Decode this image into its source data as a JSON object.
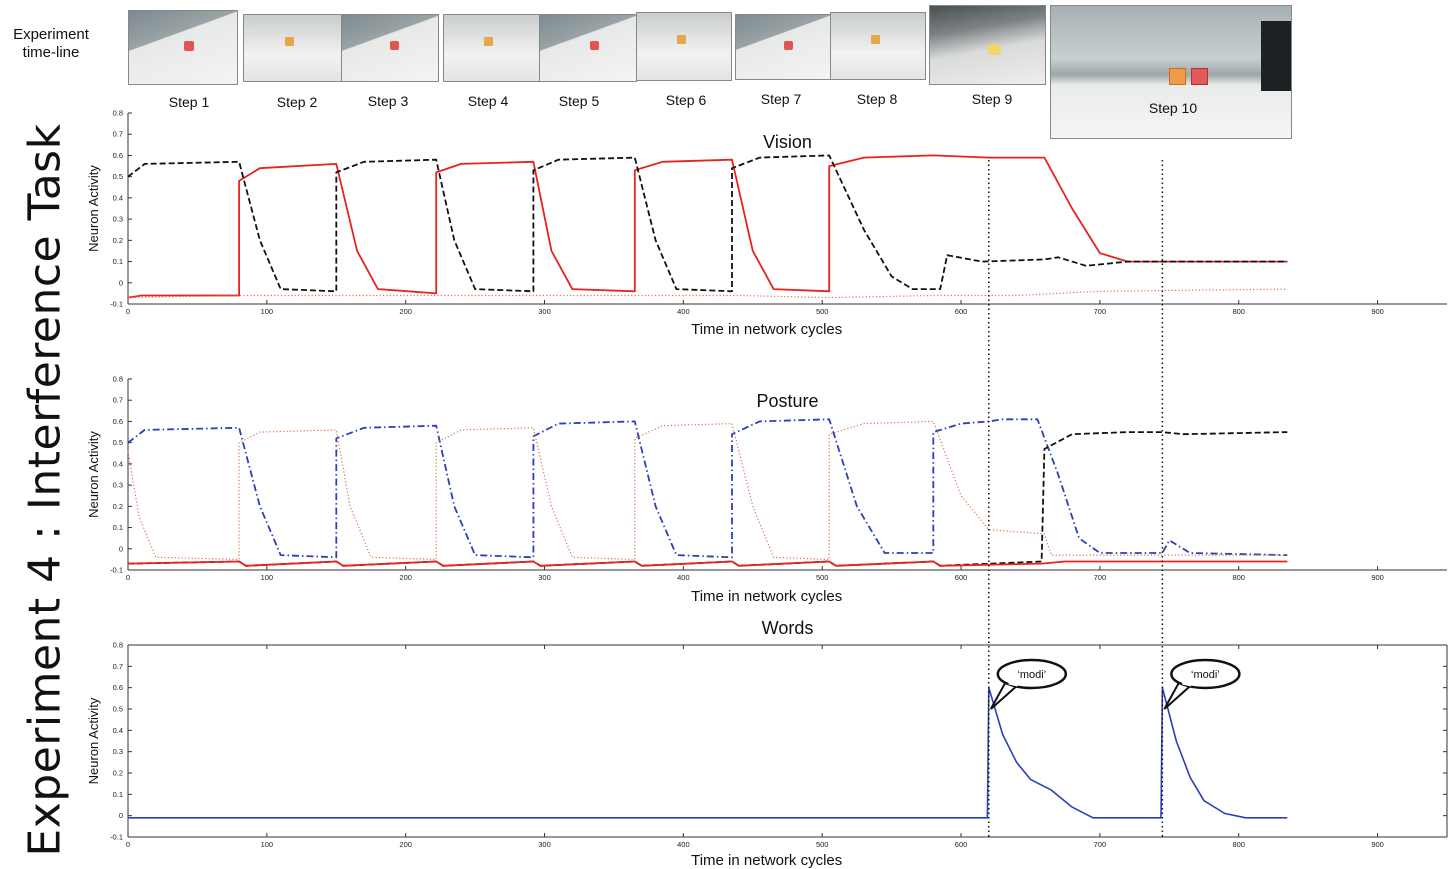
{
  "figure": {
    "side_title": "Experiment 4 : Interference Task",
    "timeline_label_line1": "Experiment",
    "timeline_label_line2": "time-line",
    "steps": [
      "Step 1",
      "Step 2",
      "Step 3",
      "Step 4",
      "Step 5",
      "Step 6",
      "Step 7",
      "Step 8",
      "Step 9",
      "Step 10"
    ],
    "markers_x": [
      620,
      745
    ],
    "speech_bubbles": [
      "‘modi’",
      "‘modi’"
    ]
  },
  "colors": {
    "red": "#e8221f",
    "black": "#111111",
    "blue": "#2d3fb8",
    "orange_dot": "#e0714a"
  },
  "chart_data": [
    {
      "type": "line",
      "title": "Vision",
      "xlabel": "Time in network cycles",
      "ylabel": "Neuron Activity",
      "xlim": [
        0,
        950
      ],
      "ylim": [
        -0.1,
        0.8
      ],
      "xticks": [
        0,
        100,
        200,
        300,
        400,
        500,
        600,
        700,
        800,
        900
      ],
      "yticks": [
        -0.1,
        0,
        0.1,
        0.2,
        0.3,
        0.4,
        0.5,
        0.6,
        0.7,
        0.8
      ],
      "series": [
        {
          "style": "red-solid",
          "points": [
            [
              0,
              -0.07
            ],
            [
              10,
              -0.06
            ],
            [
              80,
              -0.06
            ],
            [
              80,
              0.48
            ],
            [
              95,
              0.54
            ],
            [
              150,
              0.56
            ],
            [
              165,
              0.15
            ],
            [
              180,
              -0.03
            ],
            [
              222,
              -0.05
            ],
            [
              222,
              0.52
            ],
            [
              240,
              0.56
            ],
            [
              292,
              0.57
            ],
            [
              305,
              0.15
            ],
            [
              320,
              -0.03
            ],
            [
              365,
              -0.04
            ],
            [
              365,
              0.53
            ],
            [
              385,
              0.57
            ],
            [
              435,
              0.58
            ],
            [
              450,
              0.15
            ],
            [
              465,
              -0.03
            ],
            [
              505,
              -0.04
            ],
            [
              505,
              0.55
            ],
            [
              530,
              0.59
            ],
            [
              580,
              0.6
            ],
            [
              620,
              0.59
            ],
            [
              660,
              0.59
            ],
            [
              680,
              0.35
            ],
            [
              700,
              0.14
            ],
            [
              720,
              0.1
            ],
            [
              835,
              0.1
            ]
          ]
        },
        {
          "style": "black-dashed",
          "points": [
            [
              0,
              0.5
            ],
            [
              12,
              0.56
            ],
            [
              80,
              0.57
            ],
            [
              95,
              0.2
            ],
            [
              110,
              -0.03
            ],
            [
              150,
              -0.04
            ],
            [
              150,
              0.52
            ],
            [
              170,
              0.57
            ],
            [
              222,
              0.58
            ],
            [
              235,
              0.2
            ],
            [
              250,
              -0.03
            ],
            [
              292,
              -0.04
            ],
            [
              292,
              0.53
            ],
            [
              310,
              0.58
            ],
            [
              365,
              0.59
            ],
            [
              380,
              0.2
            ],
            [
              395,
              -0.03
            ],
            [
              435,
              -0.04
            ],
            [
              435,
              0.54
            ],
            [
              455,
              0.59
            ],
            [
              505,
              0.6
            ],
            [
              530,
              0.25
            ],
            [
              550,
              0.03
            ],
            [
              565,
              -0.03
            ],
            [
              585,
              -0.03
            ],
            [
              590,
              0.13
            ],
            [
              615,
              0.1
            ],
            [
              660,
              0.11
            ],
            [
              670,
              0.12
            ],
            [
              690,
              0.08
            ],
            [
              720,
              0.1
            ],
            [
              835,
              0.1
            ]
          ]
        },
        {
          "style": "orange-dotted",
          "points": [
            [
              0,
              -0.07
            ],
            [
              80,
              -0.06
            ],
            [
              90,
              -0.06
            ],
            [
              150,
              -0.06
            ],
            [
              225,
              -0.06
            ],
            [
              300,
              -0.06
            ],
            [
              365,
              -0.06
            ],
            [
              440,
              -0.06
            ],
            [
              505,
              -0.07
            ],
            [
              580,
              -0.06
            ],
            [
              640,
              -0.06
            ],
            [
              670,
              -0.05
            ],
            [
              700,
              -0.04
            ],
            [
              835,
              -0.03
            ]
          ]
        }
      ]
    },
    {
      "type": "line",
      "title": "Posture",
      "xlabel": "Time in network cycles",
      "ylabel": "Neuron Activity",
      "xlim": [
        0,
        950
      ],
      "ylim": [
        -0.1,
        0.8
      ],
      "xticks": [
        0,
        100,
        200,
        300,
        400,
        500,
        600,
        700,
        800,
        900
      ],
      "yticks": [
        -0.1,
        0,
        0.1,
        0.2,
        0.3,
        0.4,
        0.5,
        0.6,
        0.7,
        0.8
      ],
      "series": [
        {
          "style": "blue-dashdot",
          "points": [
            [
              0,
              0.5
            ],
            [
              12,
              0.56
            ],
            [
              80,
              0.57
            ],
            [
              95,
              0.2
            ],
            [
              110,
              -0.03
            ],
            [
              150,
              -0.04
            ],
            [
              150,
              0.52
            ],
            [
              170,
              0.57
            ],
            [
              222,
              0.58
            ],
            [
              235,
              0.2
            ],
            [
              250,
              -0.03
            ],
            [
              292,
              -0.04
            ],
            [
              292,
              0.53
            ],
            [
              310,
              0.59
            ],
            [
              365,
              0.6
            ],
            [
              380,
              0.2
            ],
            [
              395,
              -0.03
            ],
            [
              435,
              -0.04
            ],
            [
              435,
              0.54
            ],
            [
              455,
              0.6
            ],
            [
              505,
              0.61
            ],
            [
              525,
              0.2
            ],
            [
              545,
              -0.02
            ],
            [
              580,
              -0.02
            ],
            [
              580,
              0.55
            ],
            [
              600,
              0.59
            ],
            [
              620,
              0.6
            ],
            [
              630,
              0.61
            ],
            [
              655,
              0.61
            ],
            [
              670,
              0.35
            ],
            [
              685,
              0.05
            ],
            [
              700,
              -0.02
            ],
            [
              745,
              -0.02
            ],
            [
              750,
              0.04
            ],
            [
              765,
              -0.02
            ],
            [
              835,
              -0.03
            ]
          ]
        },
        {
          "style": "orange-dotted",
          "points": [
            [
              0,
              0.46
            ],
            [
              8,
              0.15
            ],
            [
              20,
              -0.04
            ],
            [
              80,
              -0.05
            ],
            [
              80,
              0.5
            ],
            [
              95,
              0.55
            ],
            [
              150,
              0.56
            ],
            [
              160,
              0.2
            ],
            [
              175,
              -0.04
            ],
            [
              222,
              -0.05
            ],
            [
              222,
              0.5
            ],
            [
              240,
              0.56
            ],
            [
              292,
              0.57
            ],
            [
              305,
              0.2
            ],
            [
              320,
              -0.04
            ],
            [
              365,
              -0.05
            ],
            [
              365,
              0.52
            ],
            [
              385,
              0.58
            ],
            [
              435,
              0.59
            ],
            [
              450,
              0.2
            ],
            [
              465,
              -0.04
            ],
            [
              505,
              -0.05
            ],
            [
              505,
              0.54
            ],
            [
              530,
              0.59
            ],
            [
              580,
              0.6
            ],
            [
              600,
              0.25
            ],
            [
              620,
              0.09
            ],
            [
              660,
              0.07
            ],
            [
              665,
              -0.03
            ],
            [
              835,
              -0.03
            ]
          ]
        },
        {
          "style": "black-dashed",
          "points": [
            [
              0,
              -0.07
            ],
            [
              80,
              -0.06
            ],
            [
              85,
              -0.08
            ],
            [
              150,
              -0.06
            ],
            [
              155,
              -0.08
            ],
            [
              222,
              -0.06
            ],
            [
              227,
              -0.08
            ],
            [
              292,
              -0.06
            ],
            [
              297,
              -0.08
            ],
            [
              365,
              -0.06
            ],
            [
              370,
              -0.08
            ],
            [
              435,
              -0.06
            ],
            [
              440,
              -0.08
            ],
            [
              505,
              -0.06
            ],
            [
              510,
              -0.08
            ],
            [
              580,
              -0.06
            ],
            [
              585,
              -0.08
            ],
            [
              658,
              -0.06
            ],
            [
              660,
              0.47
            ],
            [
              680,
              0.54
            ],
            [
              720,
              0.55
            ],
            [
              745,
              0.55
            ],
            [
              760,
              0.54
            ],
            [
              835,
              0.55
            ]
          ]
        },
        {
          "style": "red-solid",
          "points": [
            [
              0,
              -0.07
            ],
            [
              80,
              -0.06
            ],
            [
              85,
              -0.08
            ],
            [
              150,
              -0.06
            ],
            [
              155,
              -0.08
            ],
            [
              222,
              -0.06
            ],
            [
              227,
              -0.08
            ],
            [
              292,
              -0.06
            ],
            [
              297,
              -0.08
            ],
            [
              365,
              -0.06
            ],
            [
              370,
              -0.08
            ],
            [
              435,
              -0.06
            ],
            [
              440,
              -0.08
            ],
            [
              505,
              -0.06
            ],
            [
              510,
              -0.08
            ],
            [
              580,
              -0.06
            ],
            [
              585,
              -0.08
            ],
            [
              658,
              -0.07
            ],
            [
              675,
              -0.06
            ],
            [
              835,
              -0.06
            ]
          ]
        }
      ]
    },
    {
      "type": "line",
      "title": "Words",
      "xlabel": "Time in network cycles",
      "ylabel": "Neuron Activity",
      "xlim": [
        0,
        950
      ],
      "ylim": [
        -0.1,
        0.8
      ],
      "xticks": [
        0,
        100,
        200,
        300,
        400,
        500,
        600,
        700,
        800,
        900
      ],
      "yticks": [
        -0.1,
        0,
        0.1,
        0.2,
        0.3,
        0.4,
        0.5,
        0.6,
        0.7,
        0.8
      ],
      "series": [
        {
          "style": "blue-solid",
          "points": [
            [
              0,
              -0.01
            ],
            [
              619,
              -0.01
            ],
            [
              620,
              0.6
            ],
            [
              630,
              0.38
            ],
            [
              640,
              0.25
            ],
            [
              650,
              0.17
            ],
            [
              665,
              0.12
            ],
            [
              680,
              0.04
            ],
            [
              695,
              -0.01
            ],
            [
              744,
              -0.01
            ],
            [
              745,
              0.6
            ],
            [
              755,
              0.35
            ],
            [
              765,
              0.18
            ],
            [
              775,
              0.07
            ],
            [
              790,
              0.01
            ],
            [
              805,
              -0.01
            ],
            [
              835,
              -0.01
            ]
          ]
        }
      ]
    }
  ]
}
